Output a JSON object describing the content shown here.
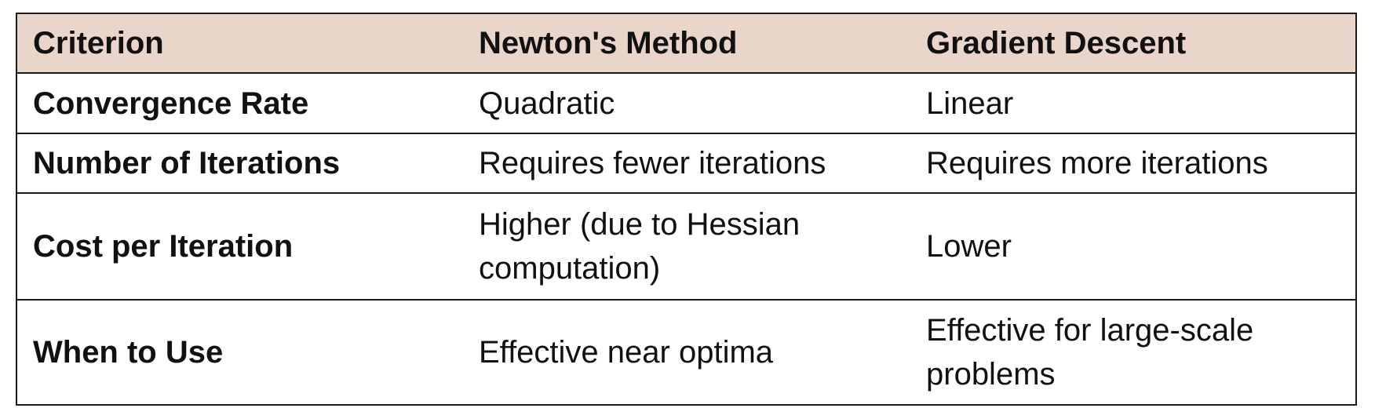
{
  "table": {
    "header": [
      "Criterion",
      "Newton's Method",
      "Gradient Descent"
    ],
    "rows": [
      [
        "Convergence Rate",
        "Quadratic",
        "Linear"
      ],
      [
        "Number of Iterations",
        "Requires fewer iterations",
        "Requires more iterations"
      ],
      [
        "Cost per Iteration",
        "Higher (due to Hessian computation)",
        "Lower"
      ],
      [
        "When to Use",
        "Effective near optima",
        "Effective for large-scale problems"
      ]
    ]
  }
}
